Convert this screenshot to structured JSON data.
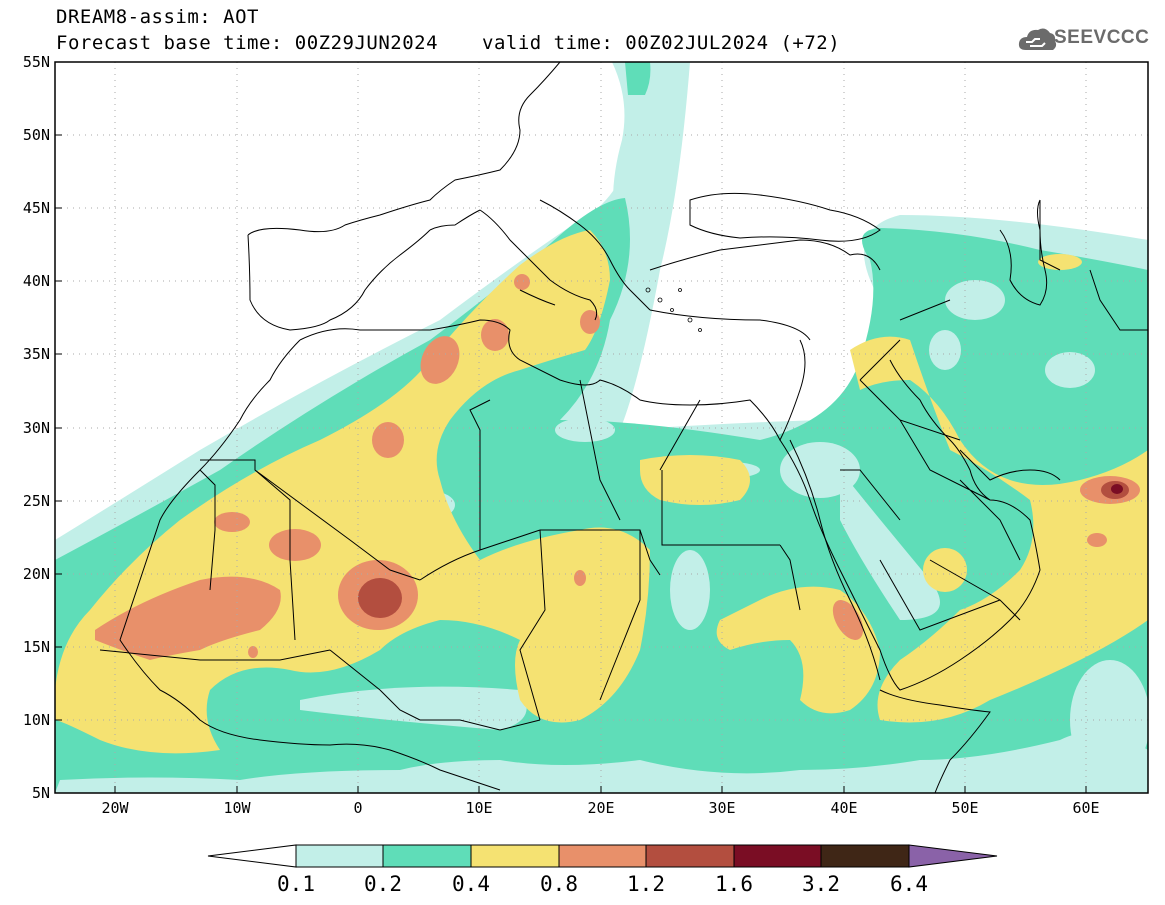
{
  "header": {
    "title": "DREAM8-assim: AOT",
    "base_time": "Forecast base time: 00Z29JUN2024",
    "valid_time": "valid time: 00Z02JUL2024 (+72)",
    "logo_text": "SEEVCCC"
  },
  "axes": {
    "lat_labels": [
      "55N",
      "50N",
      "45N",
      "40N",
      "35N",
      "30N",
      "25N",
      "20N",
      "15N",
      "10N",
      "5N"
    ],
    "lon_labels": [
      "20W",
      "10W",
      "0",
      "10E",
      "20E",
      "30E",
      "40E",
      "50E",
      "60E"
    ]
  },
  "colorbar": {
    "labels": [
      "0.1",
      "0.2",
      "0.4",
      "0.8",
      "1.2",
      "1.6",
      "3.2",
      "6.4"
    ],
    "colors": [
      "#ffffff",
      "#c2efe8",
      "#5fddb8",
      "#f5e272",
      "#e8906a",
      "#b34e3f",
      "#7a0d24",
      "#3f2616",
      "#8a62a8"
    ]
  },
  "map_colors": {
    "ocean_land": "#ffffff",
    "aot_0_1": "#c2efe8",
    "aot_0_2": "#5fddb8",
    "aot_0_4": "#f5e272",
    "aot_0_8": "#e8906a",
    "aot_1_2": "#b34e3f",
    "aot_1_6": "#7a0d24"
  }
}
